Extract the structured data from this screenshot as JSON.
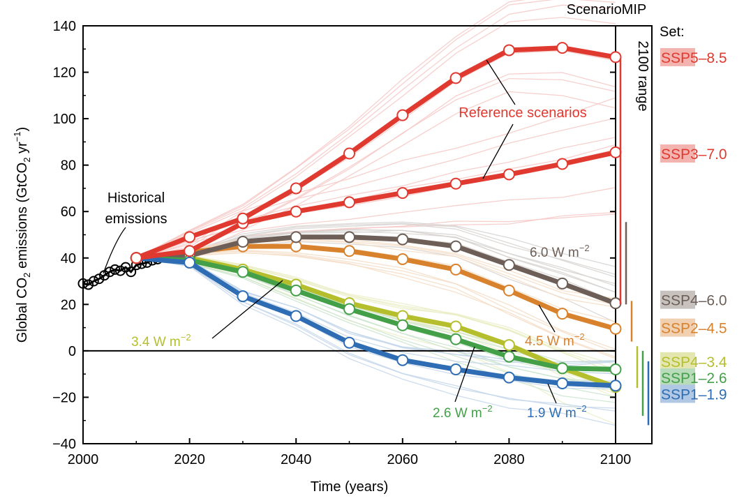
{
  "chart_data": {
    "type": "line",
    "xlabel": "Time (years)",
    "ylabel_parts": {
      "pre": "Global CO",
      "sub": "2",
      "mid": " emissions (GtCO",
      "sub2": "2",
      "unit": " yr",
      "sup": "−1",
      "post": ")"
    },
    "xlim": [
      2000,
      2100
    ],
    "ylim": [
      -40,
      140
    ],
    "xticks": [
      "2000",
      "2020",
      "2040",
      "2060",
      "2080",
      "2100"
    ],
    "yticks": [
      "−40",
      "−20",
      "0",
      "20",
      "40",
      "60",
      "80",
      "100",
      "120",
      "140"
    ],
    "grid": false,
    "historical": {
      "label_line1": "Historical",
      "label_line2": "emissions",
      "x": [
        2000,
        2001,
        2002,
        2003,
        2004,
        2005,
        2006,
        2007,
        2008,
        2009,
        2010,
        2011,
        2012,
        2013,
        2014
      ],
      "y": [
        29,
        28.5,
        30,
        31,
        32.5,
        34,
        35,
        34.5,
        36,
        34,
        37,
        37.5,
        38,
        39,
        39.5
      ],
      "color": "#000000"
    },
    "markers_x": [
      2010,
      2020,
      2030,
      2040,
      2050,
      2060,
      2070,
      2080,
      2090,
      2100
    ],
    "series": [
      {
        "name": "SSP5–8.5",
        "color": "#e03a30",
        "y": [
          40,
          49,
          57,
          70,
          85,
          101.5,
          117.5,
          129.5,
          130.5,
          126.5
        ]
      },
      {
        "name": "SSP3–7.0",
        "color": "#e03a30",
        "y": [
          40,
          43,
          55,
          60,
          64,
          68,
          72,
          76,
          80.5,
          85.5
        ]
      },
      {
        "name": "SSP4–6.0",
        "color": "#6d5f57",
        "y": [
          40,
          41,
          47,
          49,
          49,
          48,
          45,
          37,
          29,
          20.5
        ]
      },
      {
        "name": "SSP2–4.5",
        "color": "#d8822e",
        "y": [
          40,
          42.5,
          45,
          45,
          43,
          39.5,
          35,
          26,
          16,
          9.5
        ]
      },
      {
        "name": "SSP4–3.4",
        "color": "#b5bf2d",
        "y": [
          40,
          40,
          35,
          28.5,
          20.5,
          15,
          10.5,
          2.5,
          -7.5,
          -15.5
        ]
      },
      {
        "name": "SSP1–2.6",
        "color": "#43a048",
        "y": [
          40,
          39,
          34,
          26,
          18,
          11,
          5,
          -2.5,
          -7.5,
          -8
        ]
      },
      {
        "name": "SSP1–1.9",
        "color": "#2e6db4",
        "y": [
          40,
          38,
          23.5,
          15,
          3.5,
          -4,
          -8,
          -11.5,
          -14,
          -15
        ]
      }
    ],
    "annotations": {
      "reference": "Reference scenarios",
      "w60_num": "6.0 W m",
      "w45_num": "4.5 W m",
      "w34_num": "3.4 W m",
      "w26_num": "2.6 W m",
      "w19_num": "1.9 W m",
      "sup": "−2"
    },
    "scenariomip": "ScenarioMIP",
    "range_label": "2100 range",
    "set_label": "Set:",
    "legend": [
      {
        "prefix": "SSP",
        "suffix": "5–8.5",
        "color": "#e03a30",
        "y": 126.5
      },
      {
        "prefix": "SSP",
        "suffix": "3–7.0",
        "color": "#e03a30",
        "y": 85
      },
      {
        "prefix": "SSP",
        "suffix": "4–6.0",
        "color": "#6d5f57",
        "y": 22
      },
      {
        "prefix": "SSP",
        "suffix": "2–4.5",
        "color": "#d8822e",
        "y": 10
      },
      {
        "prefix": "SSP",
        "suffix": "4–3.4",
        "color": "#b5bf2d",
        "y": -4.5
      },
      {
        "prefix": "SSP",
        "suffix": "1–2.6",
        "color": "#43a048",
        "y": -11.5
      },
      {
        "prefix": "SSP",
        "suffix": "1–1.9",
        "color": "#2e6db4",
        "y": -18.5
      }
    ],
    "ranges": [
      {
        "color": "#e03a30",
        "lo": 20,
        "hi": 126
      },
      {
        "color": "#6d5f57",
        "lo": 20,
        "hi": 55.5
      },
      {
        "color": "#d8822e",
        "lo": 4,
        "hi": 21.5
      },
      {
        "color": "#b5bf2d",
        "lo": -16,
        "hi": 2
      },
      {
        "color": "#43a048",
        "lo": -28,
        "hi": 0
      },
      {
        "color": "#2e6db4",
        "lo": -32,
        "hi": -4.5
      }
    ]
  }
}
